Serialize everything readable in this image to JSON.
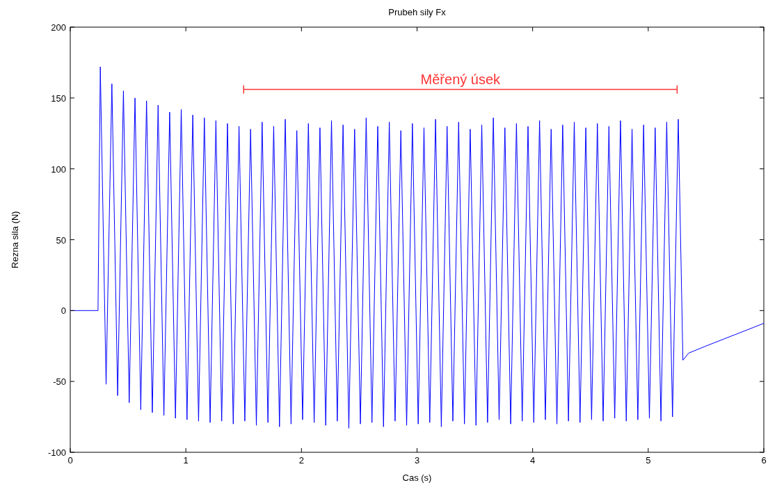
{
  "chart_data": {
    "type": "line",
    "title": "Prubeh sily Fx",
    "xlabel": "Cas (s)",
    "ylabel": "Rezna sila (N)",
    "color": "#0000ff",
    "x": [
      0,
      0.24,
      0.26,
      0.31,
      0.36,
      0.41,
      0.46,
      0.51,
      0.56,
      0.61,
      0.66,
      0.71,
      0.76,
      0.81,
      0.86,
      0.91,
      0.96,
      1.01,
      1.06,
      1.11,
      1.16,
      1.21,
      1.26,
      1.31,
      1.36,
      1.41,
      1.46,
      1.51,
      1.56,
      1.61,
      1.66,
      1.71,
      1.76,
      1.81,
      1.86,
      1.91,
      1.96,
      2.01,
      2.06,
      2.11,
      2.16,
      2.21,
      2.26,
      2.31,
      2.36,
      2.41,
      2.46,
      2.51,
      2.56,
      2.61,
      2.66,
      2.71,
      2.76,
      2.81,
      2.86,
      2.91,
      2.96,
      3.01,
      3.06,
      3.11,
      3.16,
      3.21,
      3.26,
      3.31,
      3.36,
      3.41,
      3.46,
      3.51,
      3.56,
      3.61,
      3.66,
      3.71,
      3.76,
      3.81,
      3.86,
      3.91,
      3.96,
      4.01,
      4.06,
      4.11,
      4.16,
      4.21,
      4.26,
      4.31,
      4.36,
      4.41,
      4.46,
      4.51,
      4.56,
      4.61,
      4.66,
      4.71,
      4.76,
      4.81,
      4.86,
      4.91,
      4.96,
      5.01,
      5.06,
      5.11,
      5.16,
      5.21,
      5.26,
      5.3,
      5.35,
      5.5,
      5.75,
      6
    ],
    "values": [
      0,
      0,
      172,
      -52,
      160,
      -60,
      155,
      -65,
      150,
      -70,
      148,
      -72,
      145,
      -74,
      140,
      -76,
      142,
      -77,
      138,
      -78,
      136,
      -79,
      134,
      -78,
      132,
      -80,
      130,
      -78,
      128,
      -81,
      133,
      -79,
      130,
      -82,
      135,
      -80,
      127,
      -77,
      132,
      -79,
      129,
      -81,
      134,
      -78,
      131,
      -83,
      128,
      -80,
      136,
      -79,
      130,
      -82,
      133,
      -78,
      127,
      -81,
      132,
      -80,
      129,
      -79,
      135,
      -82,
      130,
      -78,
      133,
      -80,
      128,
      -81,
      131,
      -79,
      136,
      -77,
      129,
      -80,
      132,
      -78,
      130,
      -79,
      134,
      -77,
      128,
      -80,
      131,
      -78,
      133,
      -79,
      129,
      -77,
      132,
      -78,
      130,
      -76,
      134,
      -78,
      128,
      -77,
      131,
      -76,
      129,
      -78,
      133,
      -75,
      135,
      -35,
      -30,
      -25,
      -17,
      -9
    ],
    "xlim": [
      0,
      6
    ],
    "ylim": [
      -100,
      200
    ],
    "xticks": [
      0,
      1,
      2,
      3,
      4,
      5,
      6
    ],
    "yticks": [
      -100,
      -50,
      0,
      50,
      100,
      150,
      200
    ],
    "series": [
      {
        "type": "line",
        "color": "#ff3333",
        "x": [
          1.5,
          5.25
        ],
        "values": [
          156,
          156
        ]
      }
    ],
    "annotations": [
      {
        "text": "Měřený úsek",
        "x": 3.375,
        "y": 156
      }
    ]
  }
}
